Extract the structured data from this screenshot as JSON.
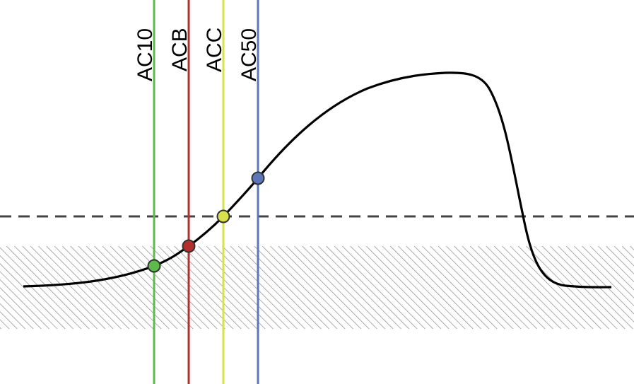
{
  "diagram": {
    "markers": [
      {
        "label": "AC10",
        "color": "#5dbb4c"
      },
      {
        "label": "ACB",
        "color": "#b52f2f"
      },
      {
        "label": "ACC",
        "color": "#d9e24a"
      },
      {
        "label": "AC50",
        "color": "#5b77b8"
      }
    ],
    "curve_color": "#000000",
    "threshold_line": {
      "style": "dashed",
      "color": "#444444"
    },
    "shaded_band": {
      "pattern": "diagonal-hatch",
      "color": "#888888"
    }
  }
}
